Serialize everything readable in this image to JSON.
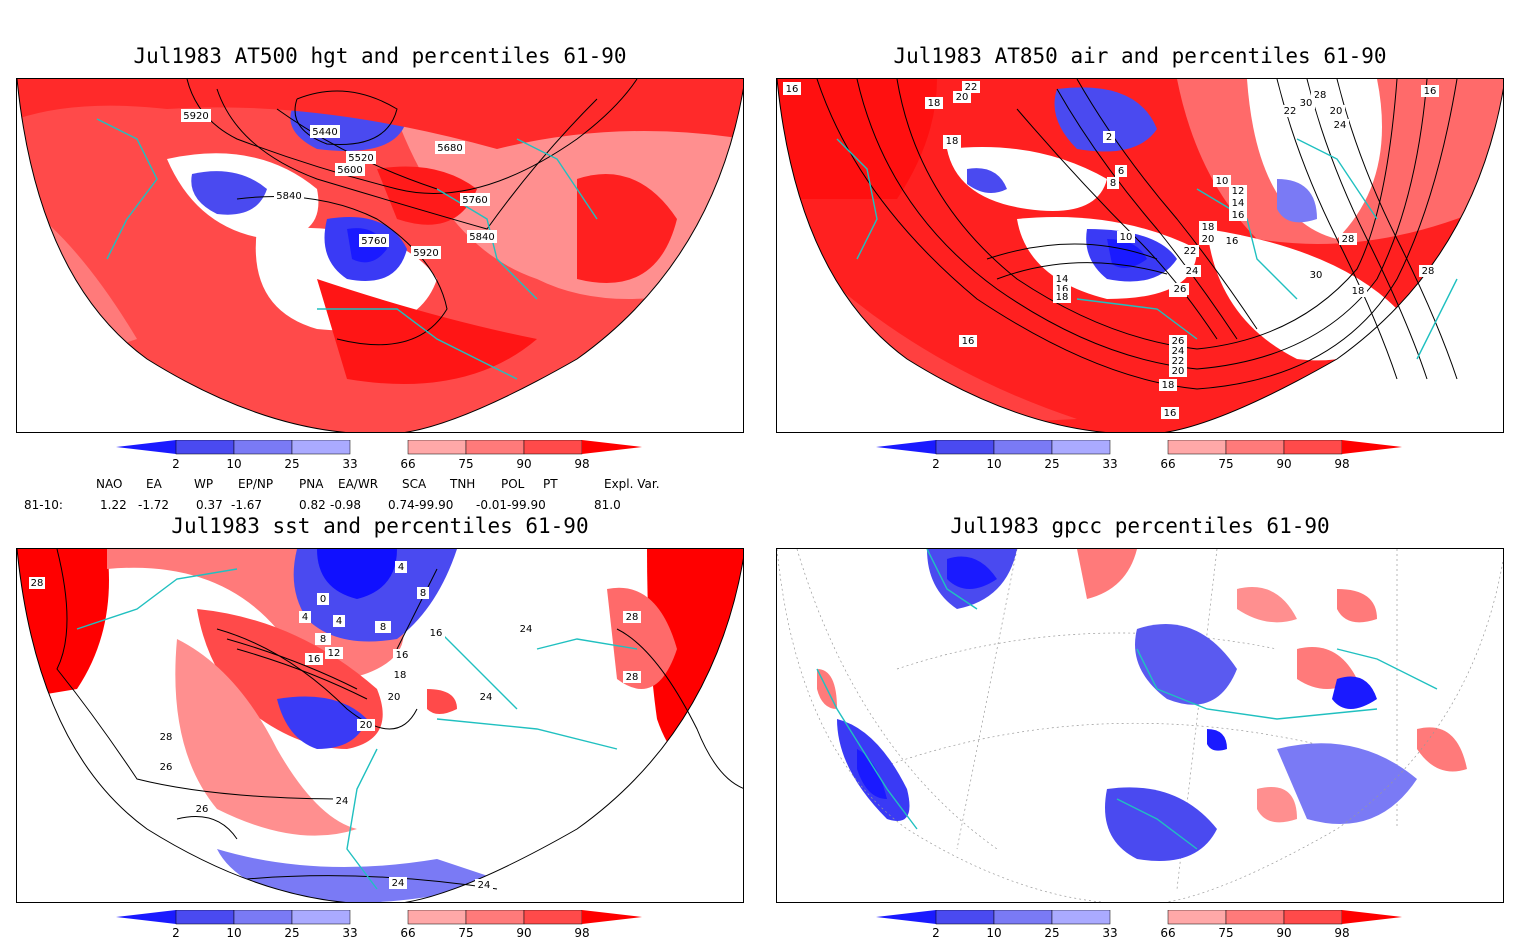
{
  "panels": [
    {
      "id": "p1",
      "title": "Jul1983 AT500 hgt and percentiles 61-90"
    },
    {
      "id": "p2",
      "title": "Jul1983 AT850 air and percentiles 61-90"
    },
    {
      "id": "p3",
      "title": "Jul1983 sst and percentiles 61-90"
    },
    {
      "id": "p4",
      "title": "Jul1983 gpcc percentiles 61-90"
    }
  ],
  "colorbar": {
    "ticks": [
      "2",
      "10",
      "25",
      "33",
      "66",
      "75",
      "90",
      "98"
    ],
    "colors": {
      "blue_dark": "#1a1aff",
      "blue_mid": "#4a4af0",
      "blue_light": "#7a7af5",
      "blue_pale": "#aaaaff",
      "red_pale": "#ffa8a8",
      "red_light": "#ff7a7a",
      "red_mid": "#ff4a4a",
      "red_dark": "#ff0000"
    }
  },
  "contours": {
    "p1": [
      "5920",
      "5440",
      "5520",
      "5600",
      "5680",
      "5840",
      "5760",
      "5760",
      "5840",
      "5920"
    ],
    "p2": [
      "16",
      "22",
      "20",
      "18",
      "18",
      "2",
      "8",
      "6",
      "10",
      "12",
      "14",
      "16",
      "18",
      "20",
      "22",
      "24",
      "26",
      "28",
      "30",
      "22",
      "20",
      "24",
      "26",
      "30",
      "28",
      "28",
      "16",
      "18",
      "18",
      "16",
      "14",
      "16",
      "18",
      "10",
      "16",
      "26",
      "24",
      "22",
      "20",
      "18",
      "16"
    ],
    "p3": [
      "28",
      "4",
      "0",
      "8",
      "4",
      "8",
      "12",
      "16",
      "20",
      "16",
      "18",
      "20",
      "24",
      "24",
      "24",
      "28",
      "28",
      "28",
      "26",
      "26",
      "24",
      "24",
      "4",
      "8",
      "16"
    ]
  },
  "indices": {
    "header": [
      "NAO",
      "EA",
      "WP",
      "EP/NP",
      "PNA",
      "EA/WR",
      "SCA",
      "TNH",
      "POL",
      "PT",
      "Expl. Var."
    ],
    "row_label": "81-10:",
    "values": [
      "1.22",
      "-1.72",
      "0.37",
      "-1.67",
      "0.82",
      "-0.98",
      "0.74-99.90",
      "-0.01-99.90",
      "81.0"
    ]
  }
}
